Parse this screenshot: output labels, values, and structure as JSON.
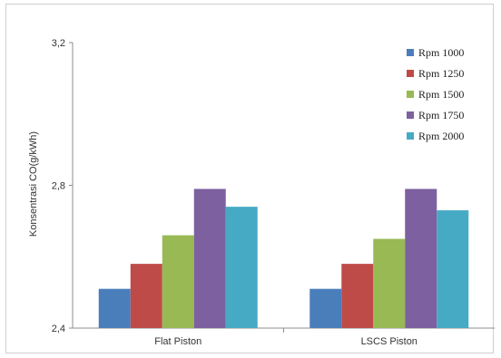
{
  "chart_data": {
    "type": "bar",
    "title": "",
    "xlabel": "",
    "ylabel": "Konsentrasi CO(g/kWh)",
    "categories": [
      "Flat Piston",
      "LSCS Piston"
    ],
    "series": [
      {
        "name": "Rpm 1000",
        "values": [
          2.51,
          2.51
        ],
        "color": "#4a7ebb"
      },
      {
        "name": "Rpm 1250",
        "values": [
          2.58,
          2.58
        ],
        "color": "#be4b48"
      },
      {
        "name": "Rpm 1500",
        "values": [
          2.66,
          2.65
        ],
        "color": "#98b954"
      },
      {
        "name": "Rpm 1750",
        "values": [
          2.79,
          2.79
        ],
        "color": "#7d60a0"
      },
      {
        "name": "Rpm 2000",
        "values": [
          2.74,
          2.73
        ],
        "color": "#46aac5"
      }
    ],
    "ylim": [
      2.4,
      3.2
    ],
    "yticks": [
      2.4,
      2.8,
      3.2
    ],
    "ytick_labels": [
      "2,4",
      "2,8",
      "3,2"
    ],
    "legend_position": "top-right",
    "grid": false
  }
}
